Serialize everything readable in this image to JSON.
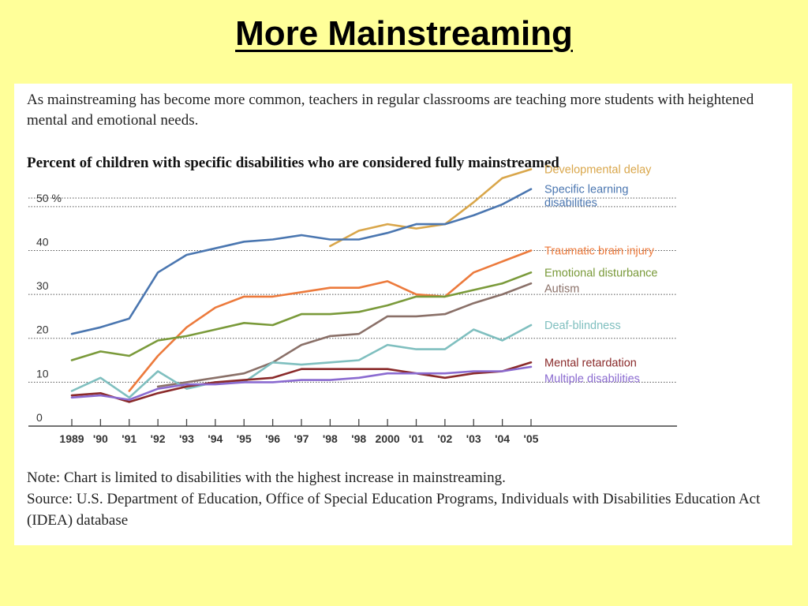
{
  "slide": {
    "title": "More Mainstreaming"
  },
  "panel": {
    "intro": "As mainstreaming has become more common, teachers in regular classrooms are teaching more students with heightened mental and emotional needs.",
    "note": "Note: Chart is limited to disabilities with the highest increase in mainstreaming.",
    "source": "Source: U.S. Department of Education, Office of Special Education Programs, Individuals with Disabilities Education Act (IDEA) database"
  },
  "chart_data": {
    "type": "line",
    "title": "Percent of children with specific disabilities who are considered fully mainstreamed",
    "categories": [
      "1989",
      "'90",
      "'91",
      "'92",
      "'93",
      "'94",
      "'95",
      "'96",
      "'97",
      "'98",
      "'98",
      "2000",
      "'01",
      "'02",
      "'03",
      "'04",
      "'05"
    ],
    "y_tick_labels": [
      "0",
      "10",
      "20",
      "30",
      "40",
      "50 %"
    ],
    "y_ticks": [
      0,
      10,
      20,
      30,
      40,
      50
    ],
    "ylim": [
      0,
      55
    ],
    "grid": "dotted horizontal",
    "legend_placement": "right, labels at line ends",
    "series": [
      {
        "name": "Developmental delay",
        "color": "#d9a64a",
        "values": [
          null,
          null,
          null,
          null,
          null,
          null,
          null,
          null,
          null,
          41,
          44.5,
          46,
          45,
          46,
          51,
          56.5,
          58.5
        ]
      },
      {
        "name": "Specific learning disabilities",
        "color": "#4a76b0",
        "values": [
          21,
          22.5,
          24.5,
          35,
          39,
          40.5,
          42,
          42.5,
          43.5,
          42.5,
          42.5,
          44,
          46,
          46,
          48,
          50.5,
          54
        ]
      },
      {
        "name": "Traumatic brain injury",
        "color": "#ec7a3c",
        "values": [
          null,
          null,
          8,
          16,
          22.5,
          27,
          29.5,
          29.5,
          30.5,
          31.5,
          31.5,
          33,
          30,
          29.5,
          35,
          37.5,
          40
        ]
      },
      {
        "name": "Emotional disturbance",
        "color": "#7a9a3a",
        "values": [
          15,
          17,
          16,
          19.5,
          20.5,
          22,
          23.5,
          23,
          25.5,
          25.5,
          26,
          27.5,
          29.5,
          29.5,
          31,
          32.5,
          35
        ]
      },
      {
        "name": "Autism",
        "color": "#8a7068",
        "values": [
          null,
          null,
          null,
          9,
          10,
          11,
          12,
          14.5,
          18.5,
          20.5,
          21,
          25,
          25,
          25.5,
          28,
          30,
          32.5
        ]
      },
      {
        "name": "Deaf-blindness",
        "color": "#7fbfbf",
        "values": [
          8,
          11,
          6.5,
          12.5,
          8.5,
          10,
          10,
          14.5,
          14,
          14.5,
          15,
          18.5,
          17.5,
          17.5,
          22,
          19.5,
          23
        ]
      },
      {
        "name": "Mental retardation",
        "color": "#8a2a2a",
        "values": [
          7,
          7.5,
          5.5,
          7.5,
          9,
          10,
          10.5,
          11,
          13,
          13,
          13,
          13,
          12,
          11,
          12,
          12.5,
          14.5
        ]
      },
      {
        "name": "Multiple disabilities",
        "color": "#8a6ad0",
        "values": [
          6.5,
          7,
          6,
          8.5,
          9.5,
          9.5,
          10,
          10,
          10.5,
          10.5,
          11,
          12,
          12,
          12,
          12.5,
          12.5,
          13.5
        ]
      }
    ],
    "legend_labels": [
      {
        "series": "Developmental delay",
        "lines": [
          "Developmental delay"
        ],
        "color": "#d9a64a"
      },
      {
        "series": "Specific learning disabilities",
        "lines": [
          "Specific learning",
          "disabilities"
        ],
        "color": "#4a76b0"
      },
      {
        "series": "Traumatic brain injury",
        "lines": [
          "Traumatic brain injury"
        ],
        "color": "#ec7a3c"
      },
      {
        "series": "Emotional disturbance",
        "lines": [
          "Emotional disturbance"
        ],
        "color": "#7a9a3a"
      },
      {
        "series": "Autism",
        "lines": [
          "Autism"
        ],
        "color": "#8a7068"
      },
      {
        "series": "Deaf-blindness",
        "lines": [
          "Deaf-blindness"
        ],
        "color": "#7fbfbf"
      },
      {
        "series": "Mental retardation",
        "lines": [
          "Mental retardation"
        ],
        "color": "#8a2a2a"
      },
      {
        "series": "Multiple disabilities",
        "lines": [
          "Multiple disabilities"
        ],
        "color": "#8a6ad0"
      }
    ]
  }
}
